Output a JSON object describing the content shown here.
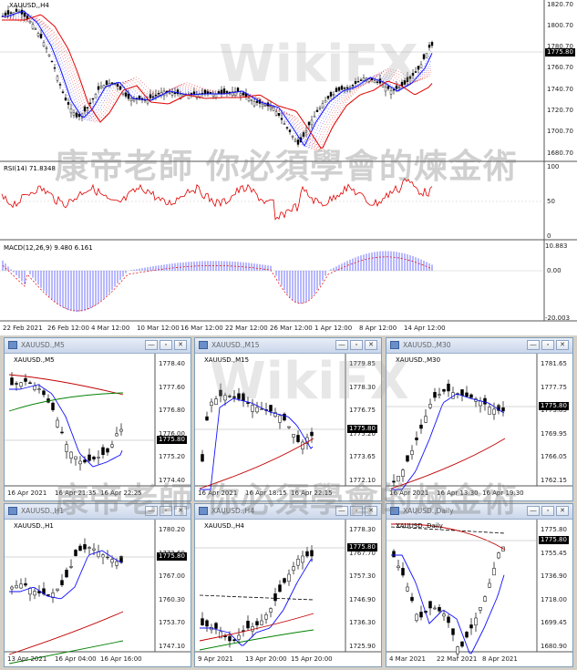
{
  "main": {
    "title": "XAUUSD,,H4",
    "price_ticks": [
      "1820.70",
      "1800.70",
      "1780.70",
      "1760.70",
      "1740.70",
      "1720.70",
      "1700.70",
      "1680.70"
    ],
    "current_price": "1775.80",
    "rsi": {
      "title": "RSI(14) 71.8348",
      "ticks": [
        "100",
        "50",
        "0"
      ]
    },
    "macd": {
      "title": "MACD(12,26,9) 9.480 6.161",
      "ticks": [
        "10.883",
        "0.00",
        "-20.003"
      ]
    },
    "date_ticks": [
      "22 Feb 2021",
      "26 Feb 12:00",
      "4 Mar 12:00",
      "10 Mar 12:00",
      "16 Mar 12:00",
      "22 Mar 12:00",
      "26 Mar 12:00",
      "1 Apr 12:00",
      "8 Apr 12:00",
      "14 Apr 12:00"
    ]
  },
  "windows": [
    {
      "tab": "XAUUSD.,M5",
      "chart_title": "XAUUSD.,M5",
      "price_ticks": [
        "1778.40",
        "1777.60",
        "1776.80",
        "1776.00",
        "1775.20",
        "1774.40"
      ],
      "current": "1775.80",
      "date_ticks": [
        "16 Apr 2021",
        "16 Apr 21:35",
        "16 Apr 22:25"
      ]
    },
    {
      "tab": "XAUUSD.,M15",
      "chart_title": "XAUUSD.,M15",
      "price_ticks": [
        "1779.85",
        "1778.30",
        "1776.75",
        "1775.20",
        "1773.65",
        "1772.10"
      ],
      "current": "1775.80",
      "date_ticks": [
        "16 Apr 2021",
        "16 Apr 18:15",
        "16 Apr 22:15"
      ]
    },
    {
      "tab": "XAUUSD.,M30",
      "chart_title": "XAUUSD.,M30",
      "price_ticks": [
        "1781.65",
        "1777.75",
        "1773.85",
        "1769.95",
        "1766.05",
        "1762.15"
      ],
      "current": "1775.80",
      "date_ticks": [
        "16 Apr 2021",
        "16 Apr 13:30",
        "16 Apr 19:30"
      ]
    },
    {
      "tab": "XAUUSD.,H1",
      "chart_title": "XAUUSD.,H1",
      "price_ticks": [
        "1780.20",
        "1773.60",
        "1767.00",
        "1760.30",
        "1753.70",
        "1747.10"
      ],
      "current": "1775.80",
      "date_ticks": [
        "13 Apr 2021",
        "16 Apr 04:00",
        "16 Apr 16:00"
      ]
    },
    {
      "tab": "XAUUSD.,H4",
      "chart_title": "XAUUSD.,H4",
      "price_ticks": [
        "1778.30",
        "1767.70",
        "1757.30",
        "1746.90",
        "1736.30",
        "1725.90"
      ],
      "current": "1775.80",
      "date_ticks": [
        "9 Apr 2021",
        "13 Apr 20:00",
        "15 Apr 20:00"
      ]
    },
    {
      "tab": "XAUUSD.,Daily",
      "chart_title": "XAUUSD.,Daily",
      "price_ticks": [
        "1775.80",
        "1755.45",
        "1736.90",
        "1718.00",
        "1699.45",
        "1680.90"
      ],
      "current": "1775.80",
      "date_ticks": [
        "4 Mar 2021",
        "22 Mar 2021",
        "8 Apr 2021"
      ]
    }
  ],
  "watermark": {
    "brand": "WikiFX",
    "chinese": "康帝老師 你必須學會的煉金術"
  },
  "colors": {
    "up_candle": "#ffffff",
    "down_candle": "#000000",
    "ma_blue": "#1010ff",
    "ma_red": "#e00000",
    "ma_green": "#008000",
    "rsi": "#e00000",
    "macd_hist": "#7070ff"
  }
}
